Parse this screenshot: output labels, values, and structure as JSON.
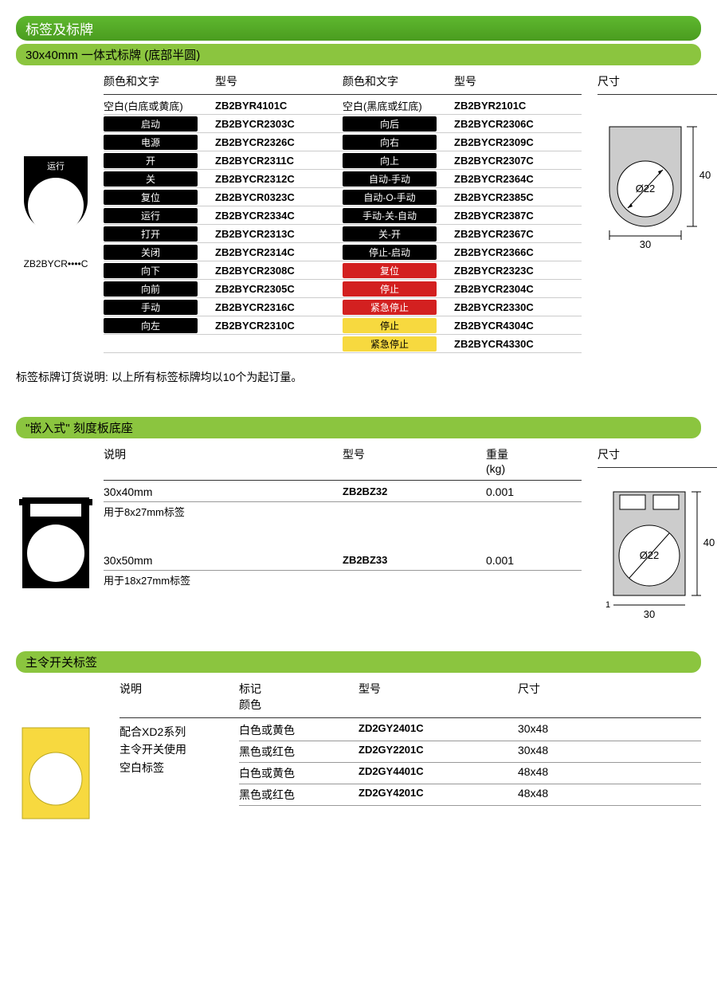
{
  "section1": {
    "title": "标签及标牌",
    "subtitle": "30x40mm 一体式标牌 (底部半圆)",
    "headers": {
      "col1": "颜色和文字",
      "col2": "型号",
      "col3": "颜色和文字",
      "col4": "型号",
      "col5": "尺寸"
    },
    "topRow": {
      "left_desc": "空白(白底或黄底)",
      "left_model": "ZB2BYR4101C",
      "right_desc": "空白(黑底或红底)",
      "right_model": "ZB2BYR2101C"
    },
    "rows": [
      {
        "l": "启动",
        "lm": "ZB2BYCR2303C",
        "r": "向后",
        "rm": "ZB2BYCR2306C",
        "lc": "black",
        "rc": "black"
      },
      {
        "l": "电源",
        "lm": "ZB2BYCR2326C",
        "r": "向右",
        "rm": "ZB2BYCR2309C",
        "lc": "black",
        "rc": "black"
      },
      {
        "l": "开",
        "lm": "ZB2BYCR2311C",
        "r": "向上",
        "rm": "ZB2BYCR2307C",
        "lc": "black",
        "rc": "black"
      },
      {
        "l": "关",
        "lm": "ZB2BYCR2312C",
        "r": "自动-手动",
        "rm": "ZB2BYCR2364C",
        "lc": "black",
        "rc": "black"
      },
      {
        "l": "复位",
        "lm": "ZB2BYCR0323C",
        "r": "自动-O-手动",
        "rm": "ZB2BYCR2385C",
        "lc": "black",
        "rc": "black"
      },
      {
        "l": "运行",
        "lm": "ZB2BYCR2334C",
        "r": "手动-关-自动",
        "rm": "ZB2BYCR2387C",
        "lc": "black",
        "rc": "black"
      },
      {
        "l": "打开",
        "lm": "ZB2BYCR2313C",
        "r": "关-开",
        "rm": "ZB2BYCR2367C",
        "lc": "black",
        "rc": "black"
      },
      {
        "l": "关闭",
        "lm": "ZB2BYCR2314C",
        "r": "停止-启动",
        "rm": "ZB2BYCR2366C",
        "lc": "black",
        "rc": "black"
      },
      {
        "l": "向下",
        "lm": "ZB2BYCR2308C",
        "r": "复位",
        "rm": "ZB2BYCR2323C",
        "lc": "black",
        "rc": "red"
      },
      {
        "l": "向前",
        "lm": "ZB2BYCR2305C",
        "r": "停止",
        "rm": "ZB2BYCR2304C",
        "lc": "black",
        "rc": "red"
      },
      {
        "l": "手动",
        "lm": "ZB2BYCR2316C",
        "r": "紧急停止",
        "rm": "ZB2BYCR2330C",
        "lc": "black",
        "rc": "red"
      },
      {
        "l": "向左",
        "lm": "ZB2BYCR2310C",
        "r": "停止",
        "rm": "ZB2BYCR4304C",
        "lc": "black",
        "rc": "yellow"
      },
      {
        "l": "",
        "lm": "",
        "r": "紧急停止",
        "rm": "ZB2BYCR4330C",
        "lc": "",
        "rc": "yellow"
      }
    ],
    "prod_code": "ZB2BYCR••••C",
    "prod_label": "运行",
    "note": "标签标牌订货说明: 以上所有标签标牌均以10个为起订量。",
    "dim": {
      "dia": "Ø22",
      "w": "30",
      "h": "40"
    }
  },
  "section2": {
    "title": "\"嵌入式\" 刻度板底座",
    "headers": {
      "c1": "说明",
      "c2": "型号",
      "c3": "重量",
      "c3b": "(kg)",
      "c4": "尺寸"
    },
    "rows": [
      {
        "desc": "30x40mm",
        "sub": "用于8x27mm标签",
        "model": "ZB2BZ32",
        "wt": "0.001"
      },
      {
        "desc": "30x50mm",
        "sub": "用于18x27mm标签",
        "model": "ZB2BZ33",
        "wt": "0.001"
      }
    ],
    "dim": {
      "dia": "Ø22",
      "w": "30",
      "h": "40",
      "edge": "1"
    }
  },
  "section3": {
    "title": "主令开关标签",
    "headers": {
      "c1": "说明",
      "c2": "标记",
      "c2b": "颜色",
      "c3": "型号",
      "c4": "尺寸"
    },
    "desc1": "配合XD2系列",
    "desc2": "主令开关使用",
    "desc3": "空白标签",
    "rows": [
      {
        "mark": "白色或黄色",
        "model": "ZD2GY2401C",
        "dim": "30x48"
      },
      {
        "mark": "黑色或红色",
        "model": "ZD2GY2201C",
        "dim": "30x48"
      },
      {
        "mark": "白色或黄色",
        "model": "ZD2GY4401C",
        "dim": "48x48"
      },
      {
        "mark": "黑色或红色",
        "model": "ZD2GY4201C",
        "dim": "48x48"
      }
    ]
  },
  "colors": {
    "green": "#5fb82f",
    "lime": "#8bc53f",
    "red": "#d32020",
    "yellow": "#f7d93f",
    "black": "#000"
  }
}
